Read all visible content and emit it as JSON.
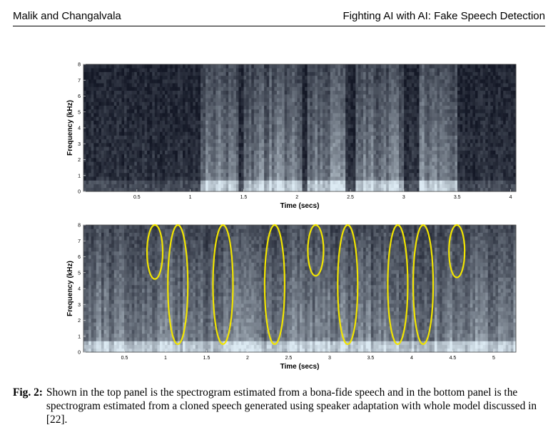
{
  "header": {
    "authors": "Malik and Changalvala",
    "title": "Fighting AI with AI: Fake Speech Detection"
  },
  "figure": {
    "caption_label": "Fig. 2:",
    "caption_text": "Shown in the top panel is the spectrogram estimated from a bona-fide speech and in the bottom panel is the spectrogram estimated from a cloned speech generated using speaker adaptation with whole model discussed in [22]."
  },
  "chart_data": [
    {
      "type": "heatmap",
      "panel": "top",
      "xlabel": "Time (secs)",
      "ylabel": "Frequency (kHz)",
      "xlim": [
        0,
        4.05
      ],
      "ylim": [
        0,
        8
      ],
      "xticks": [
        0.5,
        1,
        1.5,
        2,
        2.5,
        3,
        3.5,
        4
      ],
      "xtick_labels": [
        "0.5",
        "1",
        "1.5",
        "2",
        "2.5",
        "3",
        "3.5",
        "4"
      ],
      "yticks": [
        0,
        1,
        2,
        3,
        4,
        5,
        6,
        7,
        8
      ],
      "ytick_labels": [
        "0",
        "1",
        "2",
        "3",
        "4",
        "5",
        "6",
        "7",
        "8"
      ],
      "colormap": "bone",
      "speech_regions_secs": [
        [
          1.1,
          1.45
        ],
        [
          1.5,
          2.05
        ],
        [
          2.1,
          2.45
        ],
        [
          2.55,
          3.0
        ],
        [
          3.15,
          3.5
        ]
      ],
      "ellipse_color": "#f2e500",
      "ellipses": []
    },
    {
      "type": "heatmap",
      "panel": "bottom",
      "xlabel": "Time (secs)",
      "ylabel": "Frequency (kHz)",
      "xlim": [
        0,
        5.27
      ],
      "ylim": [
        0,
        8
      ],
      "xticks": [
        0.5,
        1,
        1.5,
        2,
        2.5,
        3,
        3.5,
        4,
        4.5,
        5
      ],
      "xtick_labels": [
        "0.5",
        "1",
        "1.5",
        "2",
        "2.5",
        "3",
        "3.5",
        "4",
        "4.5",
        "5"
      ],
      "yticks": [
        0,
        1,
        2,
        3,
        4,
        5,
        6,
        7,
        8
      ],
      "ytick_labels": [
        "0",
        "1",
        "2",
        "3",
        "4",
        "5",
        "6",
        "7",
        "8"
      ],
      "colormap": "bone",
      "speech_regions_secs": [
        [
          0.0,
          5.27
        ]
      ],
      "ellipse_color": "#f2e500",
      "ellipses": [
        {
          "t": 0.87,
          "f_low": 4.6,
          "f_high": 8.0
        },
        {
          "t": 1.15,
          "f_low": 0.5,
          "f_high": 8.0
        },
        {
          "t": 1.7,
          "f_low": 0.5,
          "f_high": 8.0
        },
        {
          "t": 2.33,
          "f_low": 0.5,
          "f_high": 8.0
        },
        {
          "t": 2.83,
          "f_low": 4.8,
          "f_high": 8.0
        },
        {
          "t": 3.22,
          "f_low": 0.5,
          "f_high": 8.0
        },
        {
          "t": 3.83,
          "f_low": 0.5,
          "f_high": 8.0
        },
        {
          "t": 4.14,
          "f_low": 0.5,
          "f_high": 8.0
        },
        {
          "t": 4.55,
          "f_low": 4.7,
          "f_high": 8.0
        }
      ]
    }
  ]
}
